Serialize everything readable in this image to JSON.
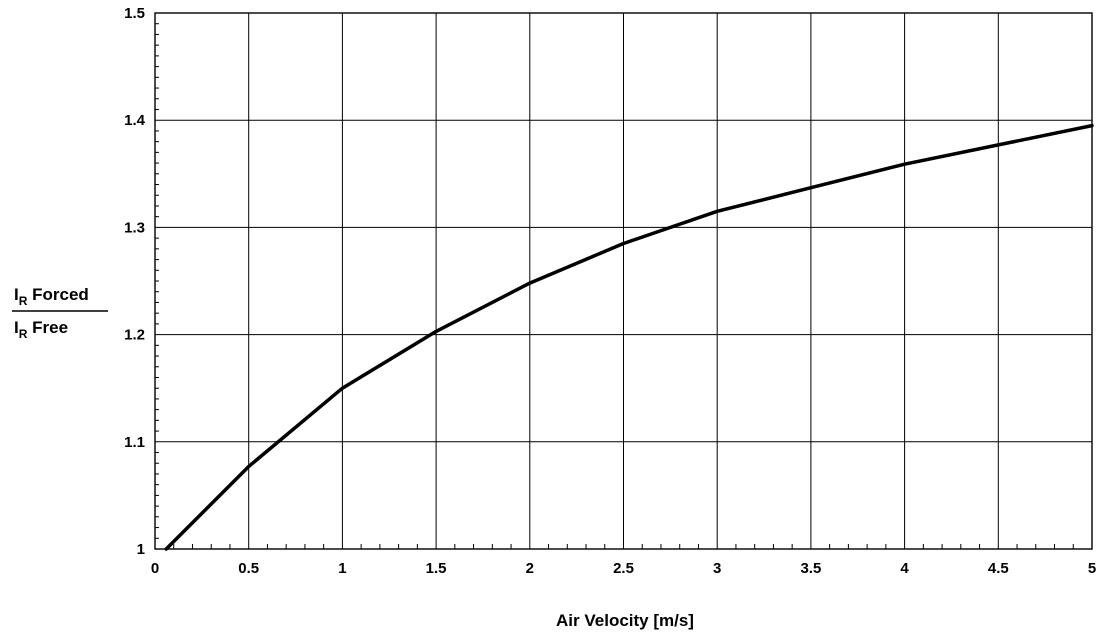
{
  "chart_data": {
    "type": "line",
    "xlabel": "Air Velocity [m/s]",
    "ylabel": {
      "numerator_main": "I",
      "numerator_sub": "R",
      "numerator_rest": " Forced",
      "denominator_main": "I",
      "denominator_sub": "R",
      "denominator_rest": " Free"
    },
    "xlim": [
      0,
      5
    ],
    "ylim": [
      1,
      1.5
    ],
    "xticks": [
      "0",
      "0.5",
      "1",
      "1.5",
      "2",
      "2.5",
      "3",
      "3.5",
      "4",
      "4.5",
      "5"
    ],
    "yticks": [
      "1",
      "1.1",
      "1.2",
      "1.3",
      "1.4",
      "1.5"
    ],
    "grid": true,
    "series": [
      {
        "x": [
          0.06,
          0.5,
          1.0,
          1.5,
          2.0,
          2.5,
          3.0,
          3.5,
          4.0,
          4.5,
          5.0
        ],
        "y": [
          1.0,
          1.077,
          1.15,
          1.203,
          1.248,
          1.285,
          1.315,
          1.337,
          1.359,
          1.377,
          1.395
        ]
      }
    ]
  }
}
